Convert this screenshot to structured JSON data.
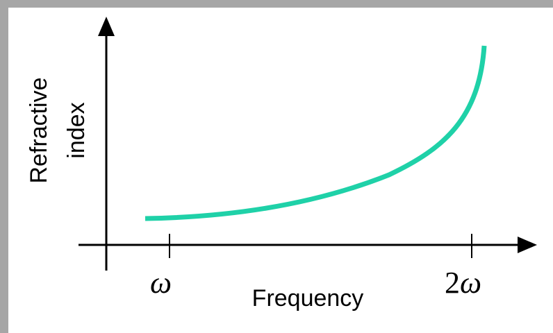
{
  "diagram": {
    "x_axis_label": "Frequency",
    "y_axis_label_line1": "Refractive",
    "y_axis_label_line2": "index",
    "tick_1": "ω",
    "tick_2_coefficient": "2",
    "tick_2_symbol": "ω",
    "curve_color": "#1fd1a8",
    "axis_color": "#000000",
    "background_color": "#ffffff",
    "border_color": "#a6a6a6"
  }
}
